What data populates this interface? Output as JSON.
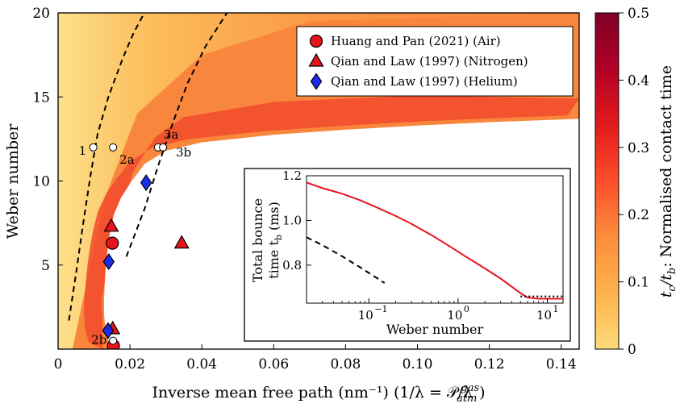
{
  "chart_data": [
    {
      "type": "heatmap",
      "title": "",
      "xlabel": "Inverse mean free path (nm⁻¹) (1/λ = 𝒫/λ",
      "xlabel_sup": "gas",
      "xlabel_sub": "atm",
      "xlabel_end": ")",
      "ylabel": "Weber number",
      "xlim": [
        0,
        0.145
      ],
      "ylim": [
        0,
        20
      ],
      "xticks": [
        "0",
        "0.02",
        "0.04",
        "0.06",
        "0.08",
        "0.10",
        "0.12",
        "0.14"
      ],
      "xtick_values": [
        0,
        0.02,
        0.04,
        0.06,
        0.08,
        0.1,
        0.12,
        0.14
      ],
      "yticks": [
        "5",
        "10",
        "15",
        "20"
      ],
      "ytick_values": [
        5,
        10,
        15,
        20
      ],
      "colorbar": {
        "label_main": "t",
        "label_sub1": "c",
        "label_mid": "/t",
        "label_sub2": "b",
        "label_end": ": Normalised contact time",
        "min": 0,
        "max": 0.5,
        "ticks": [
          "0",
          "0.1",
          "0.2",
          "0.3",
          "0.4",
          "0.5"
        ],
        "tick_values": [
          0,
          0.1,
          0.2,
          0.3,
          0.4,
          0.5
        ],
        "colors": [
          "#fedb7a",
          "#feb24c",
          "#fd8d3c",
          "#fc4e2a",
          "#e31a1c",
          "#b10026",
          "#800026"
        ]
      },
      "boundary_curve": [
        [
          0.0145,
          0.2
        ],
        [
          0.0133,
          1.0
        ],
        [
          0.0128,
          2.0
        ],
        [
          0.0128,
          3.0
        ],
        [
          0.013,
          4.0
        ],
        [
          0.0133,
          5.0
        ],
        [
          0.0138,
          6.0
        ],
        [
          0.0145,
          7.0
        ],
        [
          0.0155,
          8.0
        ],
        [
          0.0175,
          9.0
        ],
        [
          0.0205,
          10.0
        ],
        [
          0.024,
          11.0
        ],
        [
          0.03,
          11.8
        ],
        [
          0.04,
          12.3
        ],
        [
          0.06,
          12.75
        ],
        [
          0.08,
          13.05
        ],
        [
          0.1,
          13.3
        ],
        [
          0.12,
          13.5
        ],
        [
          0.145,
          13.7
        ]
      ],
      "dashed_lines": [
        [
          [
            0.003,
            1.7
          ],
          [
            0.005,
            4.5
          ],
          [
            0.007,
            7.5
          ],
          [
            0.009,
            10.3
          ],
          [
            0.011,
            12.8
          ],
          [
            0.014,
            15.0
          ],
          [
            0.018,
            17.3
          ],
          [
            0.021,
            18.8
          ],
          [
            0.024,
            20.0
          ]
        ],
        [
          [
            0.019,
            5.5
          ],
          [
            0.024,
            8.3
          ],
          [
            0.028,
            11.0
          ],
          [
            0.032,
            13.5
          ],
          [
            0.036,
            15.8
          ],
          [
            0.041,
            18.0
          ],
          [
            0.047,
            20.0
          ]
        ]
      ],
      "series": [
        {
          "name": "Huang and Pan (2021) (Air)",
          "marker": "circle",
          "color": "#e8141c",
          "x": [
            0.0151,
            0.0154
          ],
          "y": [
            6.3,
            0.2
          ]
        },
        {
          "name": "Qian and Law (1997) (Nitrogen)",
          "marker": "triangle",
          "color": "#e8141c",
          "x": [
            0.0148,
            0.0344,
            0.0152
          ],
          "y": [
            7.3,
            6.3,
            1.2
          ]
        },
        {
          "name": "Qian and Law (1997) (Helium)",
          "marker": "diamond",
          "color": "#1a2ee6",
          "x": [
            0.0245,
            0.0141,
            0.0139
          ],
          "y": [
            9.9,
            5.2,
            1.1
          ]
        }
      ],
      "white_points": [
        {
          "label": "1",
          "x": 0.0098,
          "y": 12.0
        },
        {
          "label": "2a",
          "x": 0.0153,
          "y": 12.0
        },
        {
          "label": "3a",
          "x": 0.0278,
          "y": 12.0
        },
        {
          "label": "3b",
          "x": 0.0292,
          "y": 12.0
        },
        {
          "label": "2b",
          "x": 0.0153,
          "y": 0.5
        }
      ],
      "legend_placement": "top-right"
    },
    {
      "type": "line",
      "title": "",
      "xlabel": "Weber number",
      "ylabel_line1": "Total bounce",
      "ylabel_line2_main": "time t",
      "ylabel_line2_sub": "b",
      "ylabel_line2_end": " (ms)",
      "xscale": "log",
      "xlim": [
        0.02,
        15
      ],
      "ylim": [
        0.63,
        1.2
      ],
      "xticks": [
        "10",
        "10",
        "10"
      ],
      "xtick_exps": [
        "−1",
        "0",
        "1"
      ],
      "xtick_values": [
        0.1,
        1,
        10
      ],
      "yticks": [
        "0.8",
        "1.0",
        "1.2"
      ],
      "ytick_values": [
        0.8,
        1.0,
        1.2
      ],
      "series": [
        {
          "color": "#e8141c",
          "style": "solid",
          "x": [
            0.02,
            0.03,
            0.05,
            0.08,
            0.12,
            0.2,
            0.3,
            0.5,
            0.8,
            1.2,
            2,
            3,
            5,
            6,
            8,
            10,
            15
          ],
          "y": [
            1.17,
            1.145,
            1.12,
            1.09,
            1.06,
            1.02,
            0.985,
            0.935,
            0.885,
            0.84,
            0.785,
            0.74,
            0.675,
            0.655,
            0.65,
            0.65,
            0.65
          ]
        },
        {
          "color": "#000000",
          "style": "dashed",
          "x": [
            0.02,
            0.03,
            0.05,
            0.08,
            0.12,
            0.15
          ],
          "y": [
            0.925,
            0.89,
            0.84,
            0.79,
            0.745,
            0.72
          ]
        },
        {
          "color": "#000000",
          "style": "dotted",
          "x": [
            5,
            8,
            12,
            15
          ],
          "y": [
            0.66,
            0.66,
            0.66,
            0.66
          ]
        }
      ]
    }
  ]
}
